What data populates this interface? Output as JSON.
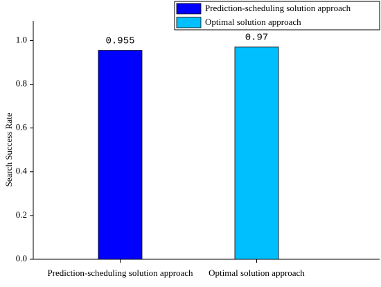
{
  "chart_data": {
    "type": "bar",
    "ylabel": "Search Success Rate",
    "categories": [
      "Prediction-scheduling solution approach",
      "Optimal solution approach"
    ],
    "series": [
      {
        "name": "Prediction-scheduling solution approach",
        "color": "#0000ff",
        "values": [
          0.955,
          null
        ]
      },
      {
        "name": "Optimal solution approach",
        "color": "#00bfff",
        "values": [
          null,
          0.97
        ]
      }
    ],
    "ylim": [
      0,
      1.09
    ],
    "yticks": [
      {
        "value": 0,
        "label": "0.0"
      },
      0.2,
      0.4,
      0.6,
      0.8,
      {
        "value": 1,
        "label": "1.0"
      }
    ],
    "legend": "top-right"
  }
}
